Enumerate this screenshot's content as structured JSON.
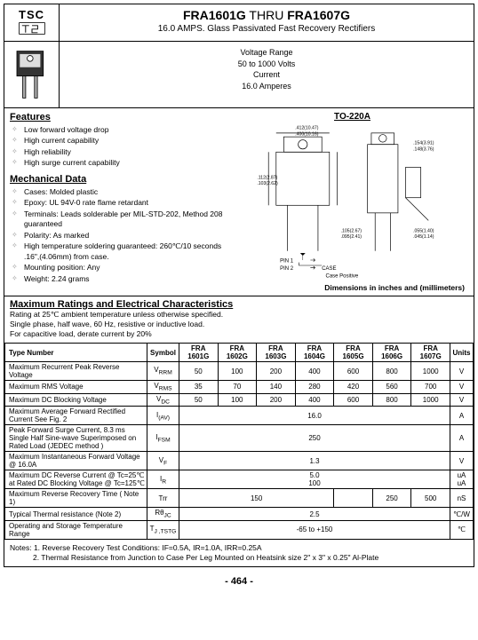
{
  "logo": {
    "text": "TSC"
  },
  "title": {
    "range1": "FRA1601G",
    "thru": " THRU ",
    "range2": "FRA1607G",
    "sub": "16.0 AMPS. Glass Passivated Fast Recovery Rectifiers"
  },
  "spec_box": {
    "l1": "Voltage Range",
    "l2": "50 to 1000 Volts",
    "l3": "Current",
    "l4": "16.0 Amperes"
  },
  "package_name": "TO-220A",
  "features_head": "Features",
  "features": [
    "Low forward voltage drop",
    "High current capability",
    "High reliability",
    "High surge current capability"
  ],
  "mech_head": "Mechanical Data",
  "mech": [
    "Cases: Molded plastic",
    "Epoxy: UL 94V-0 rate flame retardant",
    "Terminals: Leads solderable per MIL-STD-202, Method 208 guaranteed",
    "Polarity: As marked",
    "High temperature soldering guaranteed: 260℃/10 seconds .16\",(4.06mm) from case.",
    "Mounting position: Any",
    "Weight: 2.24 grams"
  ],
  "dim_note": "Dimensions in inches and (millimeters)",
  "ratings_head": "Maximum Ratings and Electrical Characteristics",
  "ratings_sub": "Rating at 25℃ ambient temperature unless otherwise specified.\nSingle phase, half wave, 60 Hz, resistive or inductive load.\nFor capacitive load, derate current by 20%",
  "table": {
    "headers": [
      "Type Number",
      "Symbol",
      "FRA 1601G",
      "FRA 1602G",
      "FRA 1603G",
      "FRA 1604G",
      "FRA 1605G",
      "FRA 1606G",
      "FRA 1607G",
      "Units"
    ],
    "cell_fontsize": 8,
    "header_bg": "#ffffff",
    "border_color": "#000000",
    "rows": [
      {
        "param": "Maximum Recurrent Peak Reverse Voltage",
        "sym": "V",
        "sub": "RRM",
        "vals": [
          "50",
          "100",
          "200",
          "400",
          "600",
          "800",
          "1000"
        ],
        "unit": "V"
      },
      {
        "param": "Maximum RMS Voltage",
        "sym": "V",
        "sub": "RMS",
        "vals": [
          "35",
          "70",
          "140",
          "280",
          "420",
          "560",
          "700"
        ],
        "unit": "V"
      },
      {
        "param": "Maximum DC Blocking Voltage",
        "sym": "V",
        "sub": "DC",
        "vals": [
          "50",
          "100",
          "200",
          "400",
          "600",
          "800",
          "1000"
        ],
        "unit": "V"
      },
      {
        "param": "Maximum Average Forward Rectified Current See Fig. 2",
        "sym": "I",
        "sub": "(AV)",
        "span": "16.0",
        "unit": "A"
      },
      {
        "param": "Peak Forward Surge Current, 8.3 ms Single Half Sine-wave Superimposed on Rated Load (JEDEC method )",
        "sym": "I",
        "sub": "FSM",
        "span": "250",
        "unit": "A"
      },
      {
        "param": "Maximum Instantaneous Forward Voltage @ 16.0A",
        "sym": "V",
        "sub": "F",
        "span": "1.3",
        "unit": "V"
      },
      {
        "param": "Maximum DC Reverse Current @ Tc=25℃\nat Rated DC Blocking Voltage @ Tc=125℃",
        "sym": "I",
        "sub": "R",
        "span": "5.0\n100",
        "unit": "uA\nuA"
      },
      {
        "param": "Maximum Reverse Recovery Time ( Note 1)",
        "sym": "Trr",
        "vals_merge": [
          {
            "span": 4,
            "val": "150"
          },
          {
            "span": 1,
            "val": ""
          },
          {
            "span": 1,
            "val": "250"
          },
          {
            "span": 1,
            "val": "500"
          }
        ],
        "unit": "nS"
      },
      {
        "param": "Typical Thermal resistance (Note 2)",
        "sym": "Rθ",
        "sub": "JC",
        "span": "2.5",
        "unit": "℃/W"
      },
      {
        "param": "Operating and Storage Temperature Range",
        "sym": "T",
        "sub": "J ,TSTG",
        "span": "-65 to +150",
        "unit": "℃"
      }
    ]
  },
  "notes_label": "Notes:",
  "notes": [
    "1. Reverse Recovery Test Conditions: IF=0.5A, IR=1.0A, IRR=0.25A",
    "2. Thermal Resistance from Junction to Case Per Leg Mounted on Heatsink size 2\" x 3\" x 0.25\" Al-Plate"
  ],
  "page_num": "- 464 -",
  "pkg_labels": {
    "pin1": "PIN 1",
    "pin2": "PIN 2",
    "case": "CASE",
    "casepos": "Case Positive"
  },
  "colors": {
    "border": "#000000",
    "bg": "#ffffff",
    "text": "#000000",
    "bullet": "#999999"
  }
}
